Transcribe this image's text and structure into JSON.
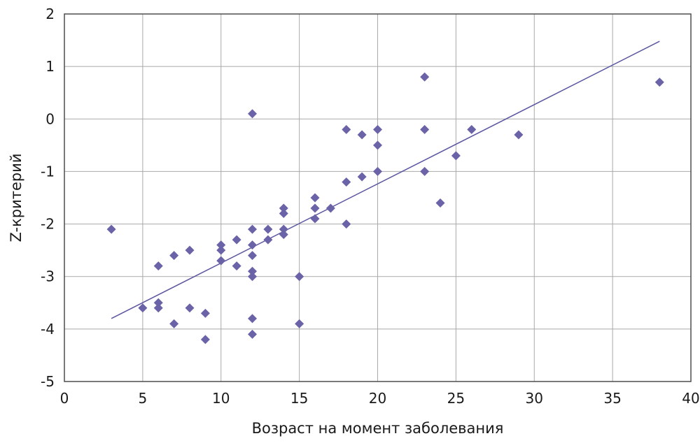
{
  "chart_data": {
    "type": "scatter",
    "xlabel": "Возраст на момент заболевания",
    "ylabel": "Z-критерий",
    "xlim": [
      0,
      40
    ],
    "ylim": [
      -5,
      2
    ],
    "xticks": [
      "0",
      "5",
      "10",
      "15",
      "20",
      "25",
      "30",
      "35",
      "40"
    ],
    "yticks": [
      "2",
      "1",
      "0",
      "-1",
      "-2",
      "-3",
      "-4",
      "-5"
    ],
    "grid": true,
    "legend": "none",
    "marker": "diamond",
    "colors": {
      "points": "#6b63a8",
      "trendline": "#5b56a0"
    },
    "points": [
      [
        3,
        -2.1
      ],
      [
        5,
        -3.6
      ],
      [
        6,
        -2.8
      ],
      [
        6,
        -3.5
      ],
      [
        6,
        -3.6
      ],
      [
        7,
        -2.6
      ],
      [
        7,
        -3.9
      ],
      [
        8,
        -2.5
      ],
      [
        8,
        -3.6
      ],
      [
        9,
        -3.7
      ],
      [
        9,
        -4.2
      ],
      [
        10,
        -2.4
      ],
      [
        10,
        -2.5
      ],
      [
        10,
        -2.7
      ],
      [
        11,
        -2.3
      ],
      [
        11,
        -2.8
      ],
      [
        12,
        0.1
      ],
      [
        12,
        -2.1
      ],
      [
        12,
        -2.4
      ],
      [
        12,
        -2.6
      ],
      [
        12,
        -2.9
      ],
      [
        12,
        -3.0
      ],
      [
        12,
        -3.8
      ],
      [
        12,
        -4.1
      ],
      [
        13,
        -2.1
      ],
      [
        13,
        -2.3
      ],
      [
        14,
        -1.7
      ],
      [
        14,
        -1.8
      ],
      [
        14,
        -2.1
      ],
      [
        14,
        -2.2
      ],
      [
        15,
        -3.0
      ],
      [
        15,
        -3.9
      ],
      [
        16,
        -1.5
      ],
      [
        16,
        -1.7
      ],
      [
        16,
        -1.9
      ],
      [
        17,
        -1.7
      ],
      [
        18,
        -0.2
      ],
      [
        18,
        -1.2
      ],
      [
        18,
        -2.0
      ],
      [
        19,
        -0.3
      ],
      [
        19,
        -1.1
      ],
      [
        20,
        -0.2
      ],
      [
        20,
        -0.5
      ],
      [
        20,
        -1.0
      ],
      [
        23,
        0.8
      ],
      [
        23,
        -0.2
      ],
      [
        23,
        -1.0
      ],
      [
        24,
        -1.6
      ],
      [
        25,
        -0.7
      ],
      [
        26,
        -0.2
      ],
      [
        29,
        -0.3
      ],
      [
        38,
        0.7
      ]
    ],
    "trendline": {
      "x": [
        3,
        38
      ],
      "y": [
        -3.8,
        1.48
      ]
    }
  }
}
